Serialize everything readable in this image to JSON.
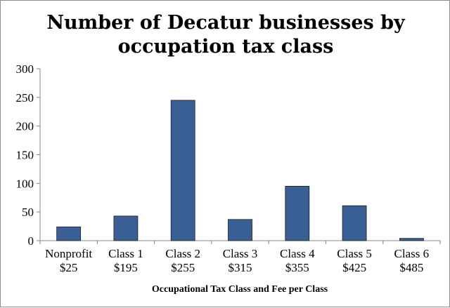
{
  "chart_data": {
    "type": "bar",
    "title_lines": [
      "Number of Decatur businesses by",
      "occupation tax class"
    ],
    "xlabel": "Occupational Tax Class and Fee per Class",
    "ylabel": "",
    "categories": [
      [
        "Nonprofit",
        "$25"
      ],
      [
        "Class 1",
        "$195"
      ],
      [
        "Class 2",
        "$255"
      ],
      [
        "Class 3",
        "$315"
      ],
      [
        "Class 4",
        "$355"
      ],
      [
        "Class 5",
        "$425"
      ],
      [
        "Class 6",
        "$485"
      ]
    ],
    "values": [
      24,
      43,
      245,
      37,
      95,
      61,
      4
    ],
    "ylim": [
      0,
      300
    ],
    "yticks": [
      0,
      50,
      100,
      150,
      200,
      250,
      300
    ],
    "grid": false,
    "legend": "none",
    "bar_color": "#385d8a",
    "bar_fill": "#3a5f94"
  }
}
